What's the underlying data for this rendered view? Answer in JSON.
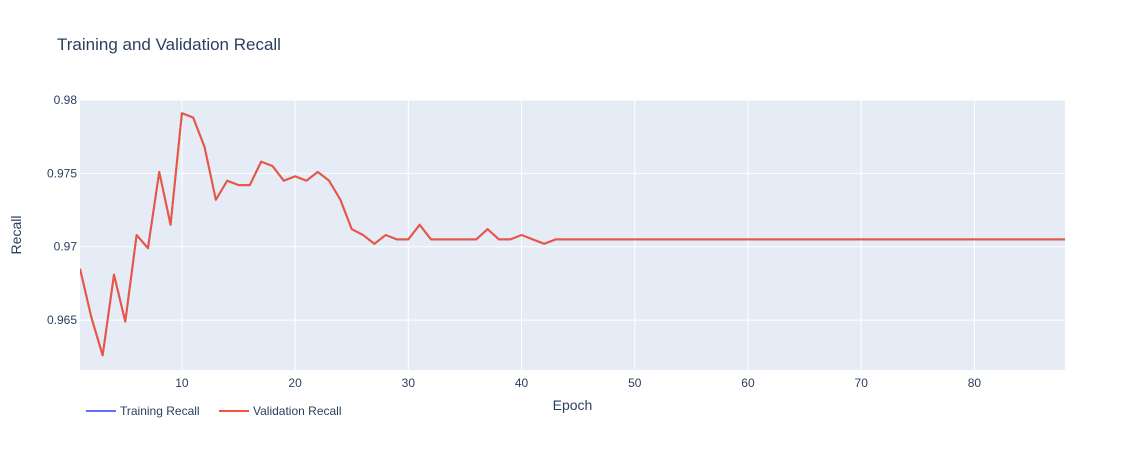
{
  "chart_data": {
    "type": "line",
    "title": "Training and Validation Recall",
    "xlabel": "Epoch",
    "ylabel": "Recall",
    "xlim": [
      1,
      88
    ],
    "ylim": [
      0.9616,
      0.98
    ],
    "x_ticks": [
      10,
      20,
      30,
      40,
      50,
      60,
      70,
      80
    ],
    "y_ticks": [
      0.965,
      0.97,
      0.975,
      0.98
    ],
    "y_tick_labels": [
      "0.965",
      "0.97",
      "0.975",
      "0.98"
    ],
    "grid": true,
    "legend_position": "bottom-left",
    "series": [
      {
        "name": "Training Recall",
        "color": "#636efa",
        "x": [
          1,
          2,
          3,
          4,
          5,
          6,
          7,
          8,
          9,
          10,
          11,
          12,
          13,
          14,
          15,
          16,
          17,
          18,
          19,
          20,
          21,
          22,
          23,
          24,
          25,
          26,
          27,
          28,
          29,
          30,
          31,
          32,
          33,
          34,
          35,
          36,
          37,
          38,
          39,
          40,
          41,
          42,
          43,
          44,
          45,
          46,
          47,
          48,
          49,
          50,
          51,
          52,
          53,
          54,
          55,
          56,
          57,
          58,
          59,
          60,
          61,
          62,
          63,
          64,
          65,
          66,
          67,
          68,
          69,
          70,
          71,
          72,
          73,
          74,
          75,
          76,
          77,
          78,
          79,
          80,
          81,
          82,
          83,
          84,
          85,
          86,
          87,
          88
        ],
        "y": [
          0.9685,
          0.9652,
          0.9626,
          0.9681,
          0.9649,
          0.9708,
          0.9699,
          0.9751,
          0.9715,
          0.9791,
          0.9788,
          0.9768,
          0.9732,
          0.9745,
          0.9742,
          0.9742,
          0.9758,
          0.9755,
          0.9745,
          0.9748,
          0.9745,
          0.9751,
          0.9745,
          0.9732,
          0.9712,
          0.9708,
          0.9702,
          0.9708,
          0.9705,
          0.9705,
          0.9715,
          0.9705,
          0.9705,
          0.9705,
          0.9705,
          0.9705,
          0.9712,
          0.9705,
          0.9705,
          0.9708,
          0.9705,
          0.9702,
          0.9705,
          0.9705,
          0.9705,
          0.9705,
          0.9705,
          0.9705,
          0.9705,
          0.9705,
          0.9705,
          0.9705,
          0.9705,
          0.9705,
          0.9705,
          0.9705,
          0.9705,
          0.9705,
          0.9705,
          0.9705,
          0.9705,
          0.9705,
          0.9705,
          0.9705,
          0.9705,
          0.9705,
          0.9705,
          0.9705,
          0.9705,
          0.9705,
          0.9705,
          0.9705,
          0.9705,
          0.9705,
          0.9705,
          0.9705,
          0.9705,
          0.9705,
          0.9705,
          0.9705,
          0.9705,
          0.9705,
          0.9705,
          0.9705,
          0.9705,
          0.9705,
          0.9705,
          0.9705
        ]
      },
      {
        "name": "Validation Recall",
        "color": "#ef553b",
        "x": [
          1,
          2,
          3,
          4,
          5,
          6,
          7,
          8,
          9,
          10,
          11,
          12,
          13,
          14,
          15,
          16,
          17,
          18,
          19,
          20,
          21,
          22,
          23,
          24,
          25,
          26,
          27,
          28,
          29,
          30,
          31,
          32,
          33,
          34,
          35,
          36,
          37,
          38,
          39,
          40,
          41,
          42,
          43,
          44,
          45,
          46,
          47,
          48,
          49,
          50,
          51,
          52,
          53,
          54,
          55,
          56,
          57,
          58,
          59,
          60,
          61,
          62,
          63,
          64,
          65,
          66,
          67,
          68,
          69,
          70,
          71,
          72,
          73,
          74,
          75,
          76,
          77,
          78,
          79,
          80,
          81,
          82,
          83,
          84,
          85,
          86,
          87,
          88
        ],
        "y": [
          0.9685,
          0.9652,
          0.9626,
          0.9681,
          0.9649,
          0.9708,
          0.9699,
          0.9751,
          0.9715,
          0.9791,
          0.9788,
          0.9768,
          0.9732,
          0.9745,
          0.9742,
          0.9742,
          0.9758,
          0.9755,
          0.9745,
          0.9748,
          0.9745,
          0.9751,
          0.9745,
          0.9732,
          0.9712,
          0.9708,
          0.9702,
          0.9708,
          0.9705,
          0.9705,
          0.9715,
          0.9705,
          0.9705,
          0.9705,
          0.9705,
          0.9705,
          0.9712,
          0.9705,
          0.9705,
          0.9708,
          0.9705,
          0.9702,
          0.9705,
          0.9705,
          0.9705,
          0.9705,
          0.9705,
          0.9705,
          0.9705,
          0.9705,
          0.9705,
          0.9705,
          0.9705,
          0.9705,
          0.9705,
          0.9705,
          0.9705,
          0.9705,
          0.9705,
          0.9705,
          0.9705,
          0.9705,
          0.9705,
          0.9705,
          0.9705,
          0.9705,
          0.9705,
          0.9705,
          0.9705,
          0.9705,
          0.9705,
          0.9705,
          0.9705,
          0.9705,
          0.9705,
          0.9705,
          0.9705,
          0.9705,
          0.9705,
          0.9705,
          0.9705,
          0.9705,
          0.9705,
          0.9705,
          0.9705,
          0.9705,
          0.9705,
          0.9705
        ]
      }
    ]
  }
}
